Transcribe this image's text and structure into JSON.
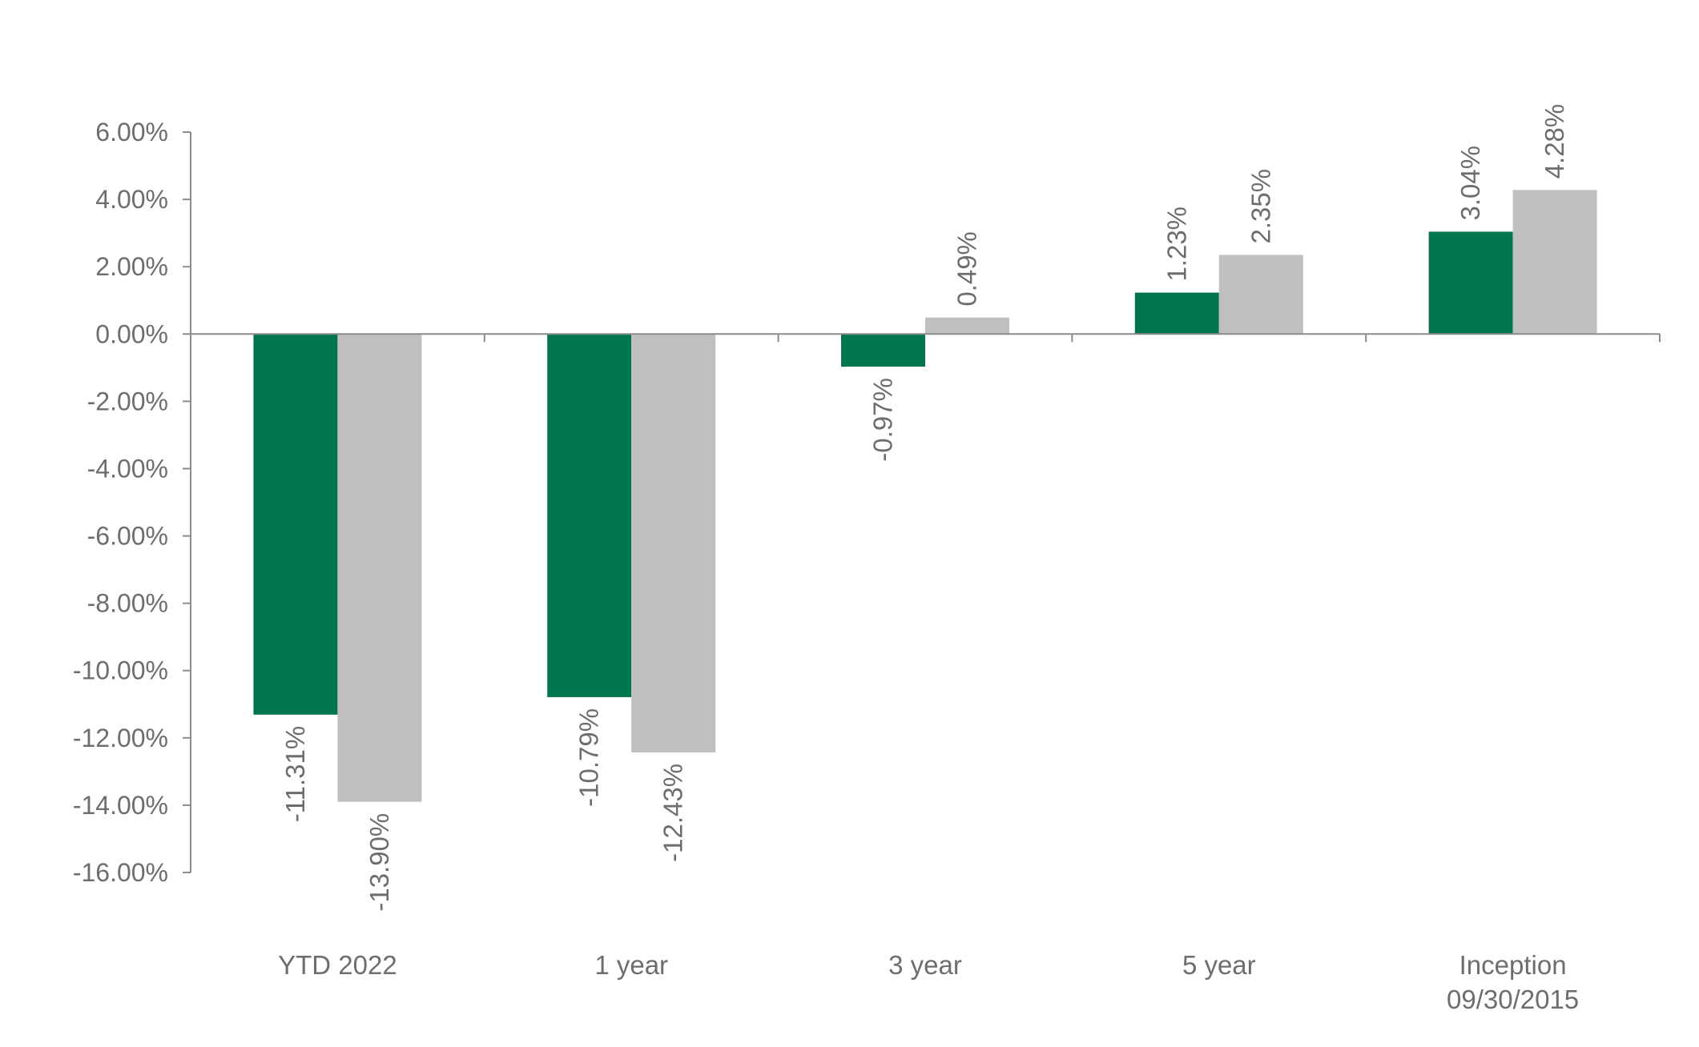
{
  "chart_data": {
    "type": "bar",
    "categories": [
      [
        "YTD 2022"
      ],
      [
        "1 year"
      ],
      [
        "3 year"
      ],
      [
        "5 year"
      ],
      [
        "Inception",
        "09/30/2015"
      ]
    ],
    "series": [
      {
        "color": "#037450",
        "values": [
          -11.31,
          -10.79,
          -0.97,
          1.23,
          3.04
        ],
        "labels": [
          "-11.31%",
          "-10.79%",
          "-0.97%",
          "1.23%",
          "3.04%"
        ]
      },
      {
        "color": "#bfbfbf",
        "values": [
          -13.9,
          -12.43,
          0.49,
          2.35,
          4.28
        ],
        "labels": [
          "-13.90%",
          "-12.43%",
          "0.49%",
          "2.35%",
          "4.28%"
        ]
      }
    ],
    "ylim": [
      -16,
      6
    ],
    "yticks": [
      6,
      4,
      2,
      0,
      -2,
      -4,
      -6,
      -8,
      -10,
      -12,
      -14,
      -16
    ],
    "ytick_labels": [
      "6.00%",
      "4.00%",
      "2.00%",
      "0.00%",
      "-2.00%",
      "-4.00%",
      "-6.00%",
      "-8.00%",
      "-10.00%",
      "-12.00%",
      "-14.00%",
      "-16.00%"
    ],
    "grid": false,
    "legend": "none",
    "data_labels_rotated": true,
    "axis_color": "#8c8c8c",
    "text_color": "#6d6d6d"
  }
}
